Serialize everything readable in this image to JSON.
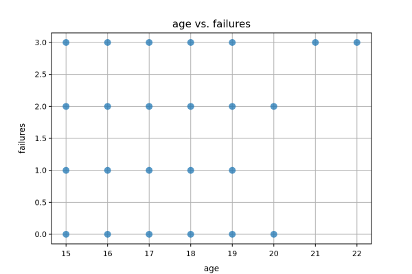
{
  "chart_data": {
    "type": "scatter",
    "title": "age vs. failures",
    "xlabel": "age",
    "ylabel": "failures",
    "xlim": [
      14.65,
      22.35
    ],
    "ylim": [
      -0.15,
      3.15
    ],
    "xticks": [
      15,
      16,
      17,
      18,
      19,
      20,
      21,
      22
    ],
    "yticks": [
      "0.0",
      "0.5",
      "1.0",
      "1.5",
      "2.0",
      "2.5",
      "3.0"
    ],
    "grid": true,
    "marker_color": "#1f77b4",
    "series": [
      {
        "points": [
          [
            15,
            0
          ],
          [
            15,
            1
          ],
          [
            15,
            2
          ],
          [
            15,
            3
          ],
          [
            16,
            0
          ],
          [
            16,
            1
          ],
          [
            16,
            2
          ],
          [
            16,
            3
          ],
          [
            17,
            0
          ],
          [
            17,
            1
          ],
          [
            17,
            2
          ],
          [
            17,
            3
          ],
          [
            18,
            0
          ],
          [
            18,
            1
          ],
          [
            18,
            2
          ],
          [
            18,
            3
          ],
          [
            19,
            0
          ],
          [
            19,
            1
          ],
          [
            19,
            2
          ],
          [
            19,
            3
          ],
          [
            20,
            0
          ],
          [
            20,
            2
          ],
          [
            21,
            3
          ],
          [
            22,
            3
          ]
        ]
      }
    ]
  }
}
